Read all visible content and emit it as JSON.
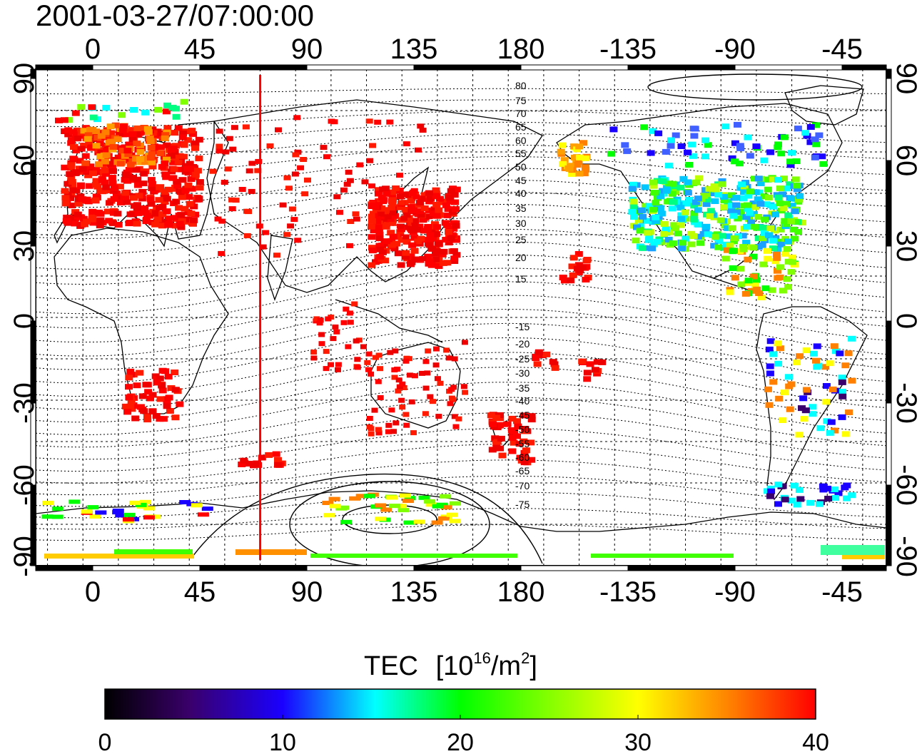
{
  "title": "2001-03-27/07:00:00",
  "top_axis_ticks": [
    "0",
    "45",
    "90",
    "135",
    "180",
    "-135",
    "-90",
    "-45"
  ],
  "bottom_axis_ticks": [
    "0",
    "45",
    "90",
    "135",
    "180",
    "-135",
    "-90",
    "-45"
  ],
  "left_axis_ticks": [
    "90",
    "60",
    "30",
    "0",
    "-30",
    "-60",
    "-90"
  ],
  "right_axis_ticks": [
    "90",
    "60",
    "30",
    "0",
    "-30",
    "-60",
    "-90"
  ],
  "contour_labels": [
    "80",
    "75",
    "70",
    "65",
    "60",
    "55",
    "50",
    "45",
    "40",
    "35",
    "30",
    "25",
    "20",
    "15",
    "-15",
    "-20",
    "-25",
    "-30",
    "-35",
    "-40",
    "-45",
    "-50",
    "-55",
    "-60",
    "-65",
    "-70",
    "-75"
  ],
  "colorbar": {
    "label": "TEC",
    "unit_base": "[10",
    "unit_exp": "16",
    "unit_mid": "/m",
    "unit_exp2": "2",
    "unit_end": "]",
    "ticks": [
      "0",
      "10",
      "20",
      "30",
      "40"
    ],
    "colors": [
      "#000000",
      "#3a006b",
      "#1a00ff",
      "#00ffff",
      "#00ff00",
      "#ffff00",
      "#ff8000",
      "#ff0000"
    ]
  },
  "map": {
    "lon_range_label": "-20 to 340",
    "lat_range": [
      -90,
      90
    ],
    "marker_longitude": 75,
    "marker_color": "#ff0000"
  }
}
